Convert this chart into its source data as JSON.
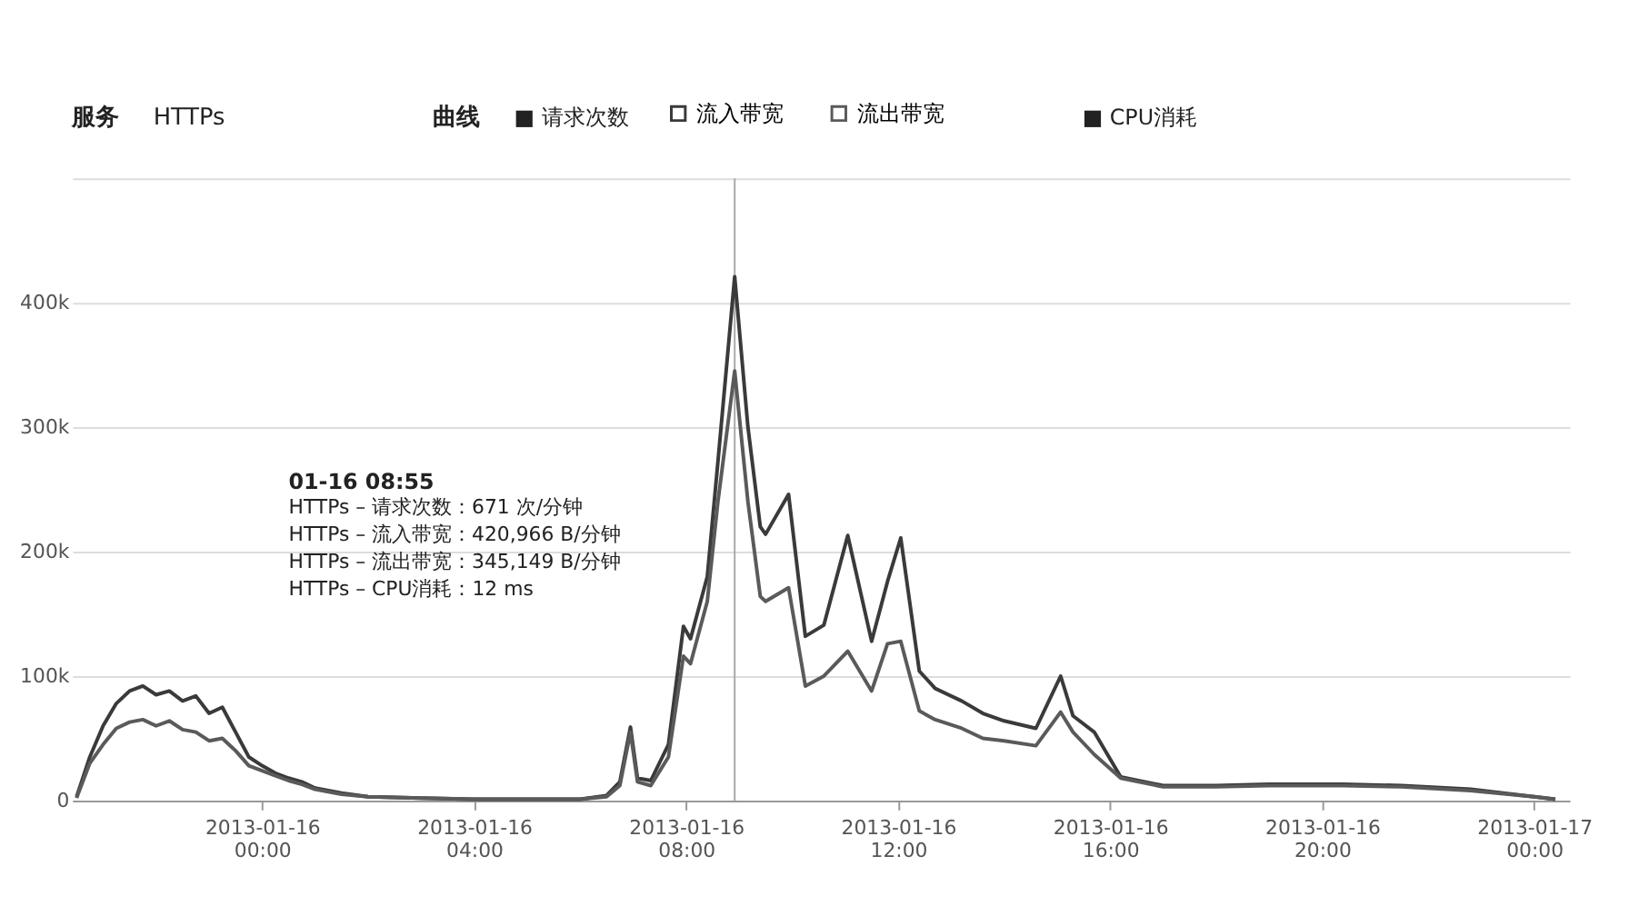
{
  "chart_data": {
    "type": "line",
    "annotations": [
      "服务",
      "HTTPs",
      "曲线",
      "■ 请求次数",
      "■ CPU消耗",
      "01-16 08:55",
      "HTTPs – 请求次数：671 次/分钟",
      "HTTPs – 流入带宽：420,966 B/分钟",
      "HTTPs – 流出带宽：345,149 B/分钟",
      "HTTPs – CPU消耗：12 ms"
    ],
    "x": [
      "2013-01-15T20:30",
      "2013-01-15T20:45",
      "2013-01-15T21:00",
      "2013-01-15T21:15",
      "2013-01-15T21:30",
      "2013-01-15T21:45",
      "2013-01-15T22:00",
      "2013-01-15T22:15",
      "2013-01-15T22:30",
      "2013-01-15T22:45",
      "2013-01-15T23:00",
      "2013-01-15T23:15",
      "2013-01-15T23:30",
      "2013-01-15T23:45",
      "2013-01-16T00:00",
      "2013-01-16T00:15",
      "2013-01-16T00:30",
      "2013-01-16T00:45",
      "2013-01-16T01:00",
      "2013-01-16T01:30",
      "2013-01-16T02:00",
      "2013-01-16T03:00",
      "2013-01-16T04:00",
      "2013-01-16T05:00",
      "2013-01-16T06:00",
      "2013-01-16T06:30",
      "2013-01-16T06:45",
      "2013-01-16T06:57",
      "2013-01-16T07:05",
      "2013-01-16T07:20",
      "2013-01-16T07:40",
      "2013-01-16T07:57",
      "2013-01-16T08:05",
      "2013-01-16T08:24",
      "2013-01-16T08:36",
      "2013-01-16T08:55",
      "2013-01-16T09:10",
      "2013-01-16T09:24",
      "2013-01-16T09:30",
      "2013-01-16T09:56",
      "2013-01-16T10:15",
      "2013-01-16T10:36",
      "2013-01-16T11:03",
      "2013-01-16T11:30",
      "2013-01-16T11:48",
      "2013-01-16T12:03",
      "2013-01-16T12:24",
      "2013-01-16T12:42",
      "2013-01-16T13:12",
      "2013-01-16T13:36",
      "2013-01-16T14:00",
      "2013-01-16T14:36",
      "2013-01-16T15:04",
      "2013-01-16T15:18",
      "2013-01-16T15:42",
      "2013-01-16T16:12",
      "2013-01-16T17:00",
      "2013-01-16T18:00",
      "2013-01-16T19:00",
      "2013-01-16T20:24",
      "2013-01-16T21:30",
      "2013-01-16T22:48",
      "2013-01-17T00:00",
      "2013-01-17T00:24"
    ],
    "series": [
      {
        "name": "流入带宽",
        "color": "#3a3a3a",
        "values": [
          3000,
          35000,
          60000,
          78000,
          88000,
          92000,
          85000,
          88000,
          80000,
          84000,
          70000,
          75000,
          55000,
          35000,
          28000,
          22000,
          18000,
          15000,
          10000,
          6000,
          3000,
          2000,
          1000,
          1000,
          1000,
          4000,
          15000,
          59000,
          18000,
          16000,
          45000,
          140000,
          130000,
          180000,
          272000,
          420966,
          300000,
          220000,
          214000,
          246000,
          132000,
          141000,
          213000,
          128000,
          176000,
          211000,
          104000,
          90000,
          80000,
          70000,
          64000,
          58000,
          100000,
          68000,
          55000,
          19000,
          12000,
          12000,
          13000,
          13000,
          12000,
          9000,
          3000,
          1000
        ]
      },
      {
        "name": "流出带宽",
        "color": "#5a5a5a",
        "values": [
          2000,
          30000,
          45000,
          58000,
          63000,
          65000,
          60000,
          64000,
          57000,
          55000,
          48000,
          50000,
          40000,
          28000,
          24000,
          20000,
          16000,
          13000,
          9000,
          5000,
          3000,
          2000,
          1000,
          1000,
          1000,
          3000,
          12000,
          55000,
          15000,
          12000,
          35000,
          116000,
          110000,
          160000,
          240000,
          345149,
          240000,
          164000,
          160000,
          171000,
          92000,
          100000,
          120000,
          88000,
          126000,
          128000,
          72000,
          65000,
          58000,
          50000,
          48000,
          44000,
          71000,
          55000,
          37000,
          18000,
          11000,
          11000,
          12000,
          12000,
          11000,
          8000,
          3000,
          1000
        ]
      }
    ],
    "xlim": [
      "2013-01-15T20:25",
      "2013-01-17T00:40"
    ],
    "xticks": [
      {
        "value": "2013-01-16T00:00",
        "label": "2013-01-16 00:00"
      },
      {
        "value": "2013-01-16T04:00",
        "label": "2013-01-16 04:00"
      },
      {
        "value": "2013-01-16T08:00",
        "label": "2013-01-16 08:00"
      },
      {
        "value": "2013-01-16T12:00",
        "label": "2013-01-16 12:00"
      },
      {
        "value": "2013-01-16T16:00",
        "label": "2013-01-16 16:00"
      },
      {
        "value": "2013-01-16T20:00",
        "label": "2013-01-16 20:00"
      },
      {
        "value": "2013-01-17T00:00",
        "label": "2013-01-17 00:00"
      }
    ],
    "ylim": [
      0,
      500000
    ],
    "yticks": [
      0,
      {
        "value": 100000,
        "label": "100k"
      },
      {
        "value": 200000,
        "label": "200k"
      },
      {
        "value": 300000,
        "label": "300k"
      },
      {
        "value": 400000,
        "label": "400k"
      },
      {
        "value": 500000,
        "label": null
      }
    ],
    "ref_lines": [
      {
        "axis": "x",
        "value": "2013-01-16T08:55",
        "label": null,
        "color": "#aaaaaa"
      }
    ],
    "grid": "y",
    "legend": "top",
    "marker": "none",
    "line_style": "solid"
  }
}
